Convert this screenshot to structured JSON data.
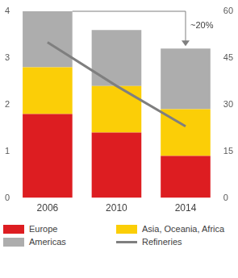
{
  "chart_data": {
    "type": "bar",
    "stacked": true,
    "grid": false,
    "legend": "bottom",
    "categories": [
      "2006",
      "2010",
      "2014"
    ],
    "series": [
      {
        "name": "Europe",
        "color": "#dd1d21",
        "values": [
          1.8,
          1.4,
          0.9
        ]
      },
      {
        "name": "Asia, Oceania, Africa",
        "color": "#fbce07",
        "values": [
          1.0,
          1.0,
          1.0
        ]
      },
      {
        "name": "Americas",
        "color": "#adadad",
        "values": [
          1.2,
          1.2,
          1.3
        ]
      },
      {
        "name": "Refineries",
        "type": "line",
        "axis": "y2",
        "color": "#7f7f7f",
        "values": [
          50,
          36,
          23
        ]
      }
    ],
    "ylim": [
      0,
      4
    ],
    "yticks": [
      0,
      1,
      2,
      3,
      4
    ],
    "y2lim": [
      0,
      60
    ],
    "y2ticks": [
      0,
      15,
      30,
      45,
      60
    ],
    "annotation": "~20%"
  }
}
